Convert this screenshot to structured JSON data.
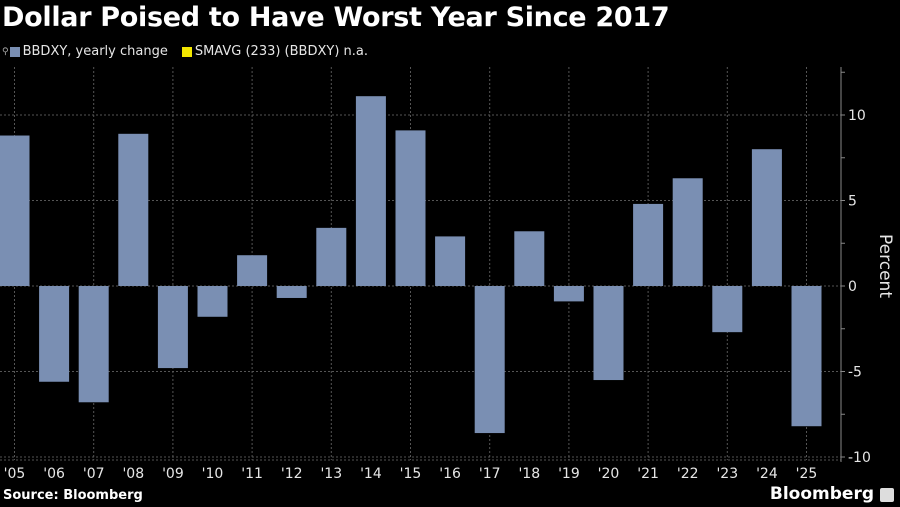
{
  "chart_data": {
    "type": "bar",
    "title": "Dollar Poised to Have Worst Year Since 2017",
    "legend": [
      {
        "name": "BBDXY, yearly change",
        "color": "#7a8fb3"
      },
      {
        "name": "SMAVG (233) (BBDXY) n.a.",
        "color": "#f2e600"
      }
    ],
    "categories": [
      "'05",
      "'06",
      "'07",
      "'08",
      "'09",
      "'10",
      "'11",
      "'12",
      "'13",
      "'14",
      "'15",
      "'16",
      "'17",
      "'18",
      "'19",
      "'20",
      "'21",
      "'22",
      "'23",
      "'24",
      "'25"
    ],
    "series": [
      {
        "name": "BBDXY, yearly change",
        "values": [
          8.8,
          -5.6,
          -6.8,
          8.9,
          -4.8,
          -1.8,
          1.8,
          -0.7,
          3.4,
          11.1,
          9.1,
          2.9,
          -8.6,
          3.2,
          -0.9,
          -5.5,
          4.8,
          6.3,
          -2.7,
          8.0,
          -8.2
        ]
      }
    ],
    "ylabel": "Percent",
    "ylim": [
      -10,
      13
    ],
    "yticks": [
      "10",
      "5",
      "0",
      "-5",
      "-10"
    ],
    "ytick_values": [
      10,
      5,
      0,
      -5,
      -10
    ],
    "grid": true,
    "y_axis_side": "right",
    "legend_placement": "top-left"
  },
  "source": "Source: Bloomberg",
  "brand": "Bloomberg",
  "colors": {
    "background": "#000000",
    "bar": "#7a8fb3",
    "grid": "#555555"
  }
}
